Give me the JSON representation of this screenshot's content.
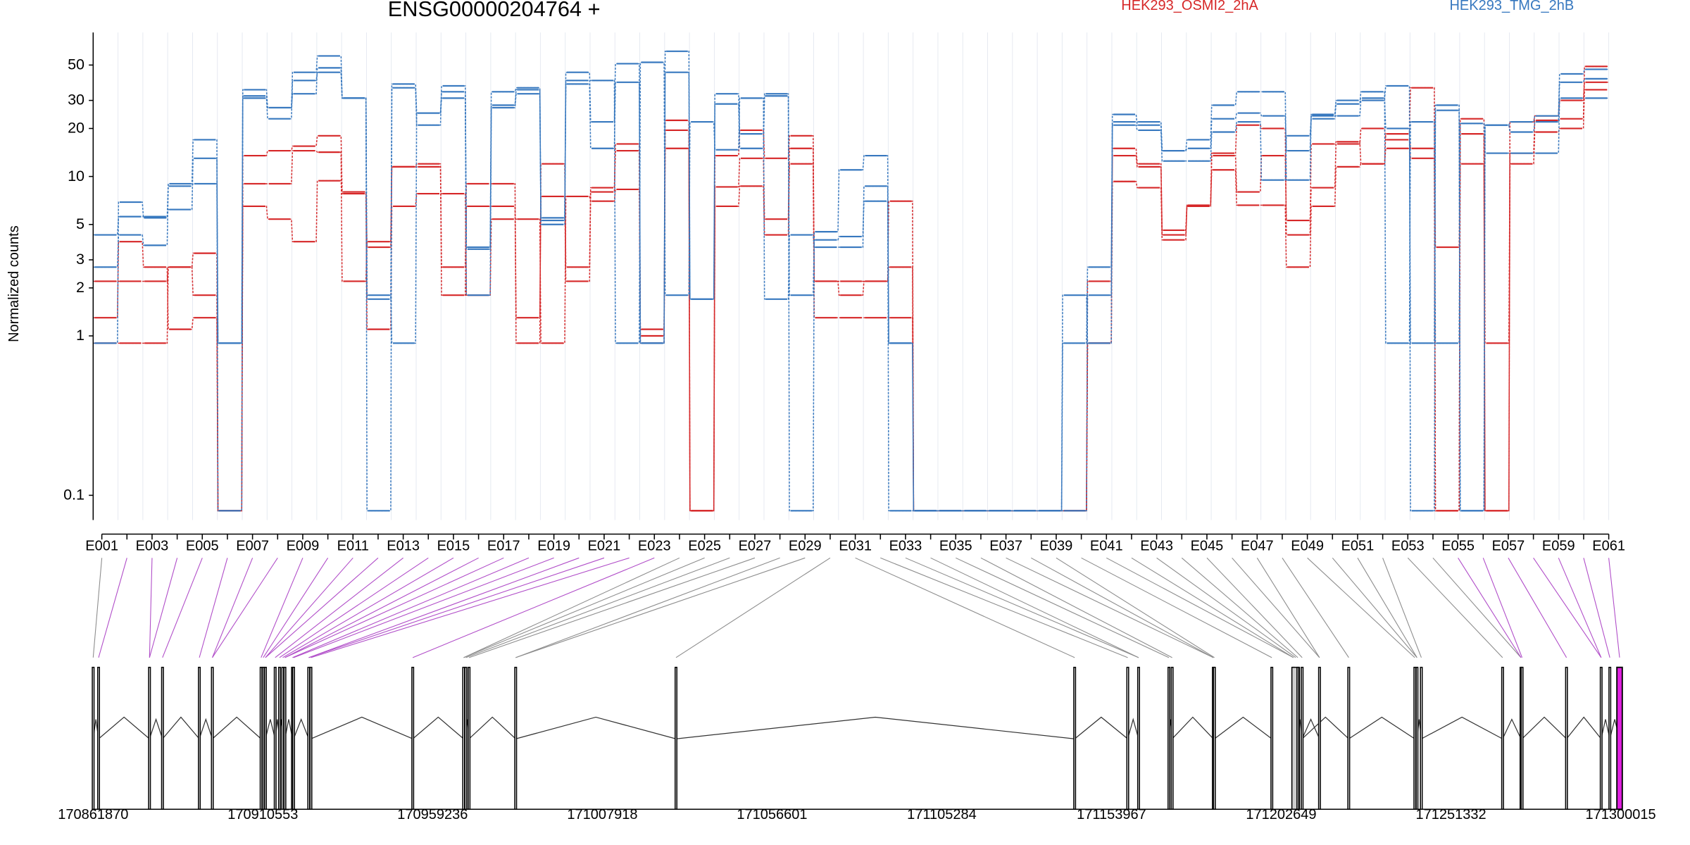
{
  "chart_data": {
    "type": "line",
    "title": "ENSG00000204764 +",
    "ylabel": "Normalized counts",
    "yscale": "log",
    "ylim": [
      0.07,
      80
    ],
    "yticks": [
      0.1,
      1,
      2,
      3,
      5,
      10,
      20,
      30,
      50
    ],
    "ytick_labels": [
      "0.1",
      "1",
      "2",
      "3",
      "5",
      "10",
      "20",
      "30",
      "50"
    ],
    "exon_labels": [
      "E001",
      "E003",
      "E005",
      "E007",
      "E009",
      "E011",
      "E013",
      "E015",
      "E017",
      "E019",
      "E021",
      "E023",
      "E025",
      "E027",
      "E029",
      "E031",
      "E033",
      "E035",
      "E037",
      "E039",
      "E041",
      "E043",
      "E045",
      "E047",
      "E049",
      "E051",
      "E053",
      "E055",
      "E057",
      "E059",
      "E061"
    ],
    "exon_count": 61,
    "coordinates": [
      "170861870",
      "170910553",
      "170959236",
      "171007918",
      "171056601",
      "171105284",
      "171153967",
      "171202649",
      "171251332",
      "171300015"
    ],
    "legend": [
      {
        "name": "HEK293_OSMI2_2hA",
        "color": "#d62728"
      },
      {
        "name": "HEK293_TMG_2hB",
        "color": "#3778bf"
      }
    ],
    "series": [
      {
        "group": "HEK293_OSMI2_2hA",
        "color": "#d62728",
        "values": [
          1.3,
          3.9,
          2.7,
          1.1,
          1.3,
          0.08,
          6.5,
          5.4,
          3.9,
          9.4,
          7.8,
          1.1,
          6.5,
          7.8,
          7.8,
          1.8,
          5.4,
          5.4,
          0.9,
          7.5,
          7.0,
          8.3,
          1.1,
          19.5,
          0.08,
          6.5,
          8.7,
          4.3,
          12.0,
          1.3,
          1.3,
          1.3,
          1.3,
          0.08,
          0.08,
          0.08,
          0.08,
          0.08,
          0.08,
          0.08,
          0.9,
          9.3,
          8.5,
          4.0,
          6.6,
          11.0,
          6.6,
          6.6,
          2.7,
          6.5,
          11.5,
          12.0,
          15.0,
          13.0,
          0.08,
          23.0,
          0.9,
          12.0,
          19.0,
          20.0,
          35.0
        ]
      },
      {
        "group": "HEK293_OSMI2_2hA",
        "color": "#d62728",
        "values": [
          2.2,
          2.2,
          2.2,
          2.7,
          1.8,
          0.08,
          9.0,
          9.0,
          14.5,
          14.2,
          2.2,
          3.9,
          11.5,
          11.5,
          1.8,
          6.5,
          6.5,
          1.3,
          7.5,
          2.2,
          8.5,
          14.5,
          1.0,
          15.0,
          0.08,
          8.6,
          13.0,
          5.4,
          15.0,
          2.2,
          1.8,
          2.2,
          2.7,
          0.08,
          0.08,
          0.08,
          0.08,
          0.08,
          0.08,
          0.08,
          2.2,
          13.5,
          11.5,
          4.3,
          6.5,
          13.5,
          8.0,
          13.5,
          5.3,
          8.5,
          16.0,
          20.0,
          17.0,
          15.0,
          3.6,
          12.0,
          0.08,
          22.0,
          24.0,
          30.0,
          39.0
        ]
      },
      {
        "group": "HEK293_OSMI2_2hA",
        "color": "#d62728",
        "values": [
          0.9,
          0.9,
          0.9,
          2.7,
          3.3,
          0.08,
          13.5,
          14.5,
          15.5,
          18.0,
          8.0,
          3.6,
          11.5,
          12.0,
          2.7,
          9.0,
          9.0,
          0.9,
          12.0,
          2.7,
          8.0,
          16.0,
          0.9,
          22.5,
          0.08,
          13.5,
          19.5,
          13.0,
          18.0,
          2.2,
          2.2,
          2.2,
          7.0,
          0.08,
          0.08,
          0.08,
          0.08,
          0.08,
          0.08,
          0.08,
          0.9,
          15.0,
          12.0,
          4.6,
          6.5,
          14.0,
          21.0,
          20.0,
          4.3,
          16.0,
          16.5,
          12.0,
          18.5,
          36.0,
          0.08,
          18.5,
          0.08,
          14.0,
          22.5,
          23.0,
          49.0
        ]
      },
      {
        "group": "HEK293_TMG_2hB",
        "color": "#3778bf",
        "values": [
          2.7,
          4.3,
          3.7,
          8.7,
          9.0,
          0.9,
          31.0,
          23.0,
          40.0,
          45.0,
          31.0,
          1.8,
          0.9,
          25.0,
          31.0,
          1.8,
          27.0,
          33.0,
          5.3,
          40.0,
          40.0,
          0.9,
          52.0,
          1.8,
          22.0,
          14.7,
          31.0,
          1.7,
          4.3,
          3.6,
          3.6,
          8.7,
          0.08,
          0.08,
          0.08,
          0.08,
          0.08,
          0.08,
          0.08,
          0.08,
          1.8,
          21.0,
          19.5,
          12.5,
          12.5,
          19.0,
          22.0,
          9.5,
          18.0,
          23.0,
          28.5,
          34.0,
          0.9,
          22.0,
          0.9,
          21.5,
          14.0,
          14.0,
          14.0,
          31.0,
          31.0
        ]
      },
      {
        "group": "HEK293_TMG_2hB",
        "color": "#3778bf",
        "values": [
          4.3,
          5.6,
          5.6,
          6.2,
          13.0,
          0.9,
          32.0,
          27.0,
          33.0,
          48.0,
          31.0,
          1.7,
          38.0,
          25.0,
          34.0,
          3.6,
          28.0,
          35.0,
          5.5,
          38.0,
          15.0,
          39.0,
          0.9,
          45.0,
          1.7,
          28.5,
          15.0,
          33.0,
          1.8,
          4.0,
          4.2,
          7.0,
          0.9,
          0.08,
          0.08,
          0.08,
          0.08,
          0.08,
          0.08,
          0.9,
          2.7,
          22.0,
          22.0,
          14.5,
          15.0,
          23.0,
          25.0,
          24.0,
          14.5,
          24.0,
          24.0,
          30.0,
          20.0,
          0.9,
          26.0,
          0.08,
          21.0,
          19.0,
          22.0,
          39.0,
          41.0
        ]
      },
      {
        "group": "HEK293_TMG_2hB",
        "color": "#3778bf",
        "values": [
          0.9,
          6.9,
          5.5,
          9.0,
          17.0,
          0.08,
          35.0,
          27.0,
          45.0,
          57.0,
          31.0,
          0.08,
          36.0,
          21.0,
          37.0,
          3.5,
          34.0,
          36.0,
          5.0,
          45.0,
          22.0,
          51.0,
          0.9,
          61.0,
          1.7,
          33.0,
          18.5,
          32.0,
          0.08,
          4.5,
          11.0,
          13.5,
          0.9,
          0.08,
          0.08,
          0.08,
          0.08,
          0.08,
          0.08,
          1.8,
          0.9,
          24.5,
          21.0,
          14.5,
          17.0,
          28.0,
          34.0,
          34.0,
          9.5,
          24.5,
          30.0,
          31.0,
          37.0,
          0.08,
          28.0,
          0.08,
          21.0,
          22.0,
          24.0,
          44.0,
          47.0
        ]
      }
    ],
    "gene_model": {
      "exon_genomic_x": [
        86,
        91,
        138,
        150,
        184,
        196,
        241,
        243,
        245,
        254,
        258,
        261,
        263,
        270,
        271,
        285,
        287,
        381,
        428,
        430,
        433,
        476,
        624,
        992,
        1041,
        1051,
        1079,
        1082,
        1120,
        1121,
        1174,
        1194,
        1196,
        1198,
        1202,
        1218,
        1245,
        1306,
        1308,
        1312,
        1387,
        1404,
        1405,
        1446,
        1478,
        1486,
        1495
      ],
      "highlighted_exons": [
        2,
        3,
        4,
        5,
        6,
        7,
        8,
        9,
        10,
        11,
        12,
        13,
        14,
        15,
        16,
        17,
        18,
        19,
        20,
        21,
        22,
        23,
        55,
        56,
        57,
        58,
        59,
        60,
        61
      ],
      "intron_peaks": [
        [
          91,
          138,
          662
        ],
        [
          150,
          184,
          662
        ],
        [
          196,
          241,
          662
        ],
        [
          287,
          381,
          662
        ],
        [
          381,
          428,
          662
        ],
        [
          433,
          476,
          662
        ],
        [
          476,
          624,
          662
        ],
        [
          624,
          992,
          662
        ],
        [
          992,
          1041,
          662
        ],
        [
          1082,
          1120,
          662
        ],
        [
          1121,
          1174,
          662
        ],
        [
          1202,
          1245,
          662
        ],
        [
          1245,
          1306,
          662
        ],
        [
          1312,
          1387,
          662
        ],
        [
          1405,
          1446,
          662
        ],
        [
          1446,
          1478,
          662
        ]
      ]
    }
  }
}
